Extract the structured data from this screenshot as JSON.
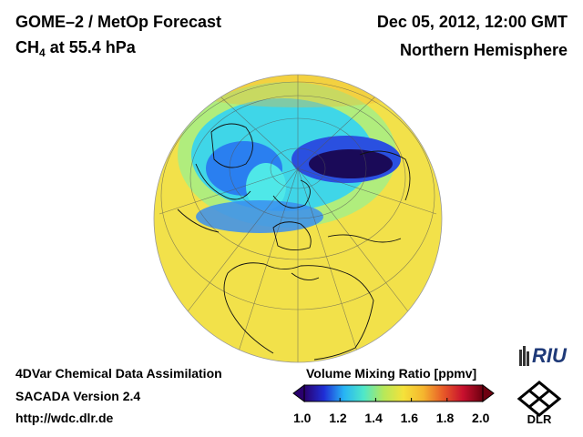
{
  "header": {
    "product": "GOME–2 / MetOp Forecast",
    "species": "CH",
    "species_subscript": "4",
    "level": "at 55.4 hPa",
    "datetime": "Dec 05, 2012, 12:00 GMT",
    "region": "Northern Hemisphere"
  },
  "footer": {
    "line1": "4DVar Chemical Data Assimilation",
    "line2": "SACADA Version 2.4",
    "line3": "http://wdc.dlr.de"
  },
  "colorbar": {
    "title": "Volume Mixing Ratio [ppmv]",
    "ticks": [
      "1.0",
      "1.2",
      "1.4",
      "1.6",
      "1.8",
      "2.0"
    ],
    "min": 1.0,
    "max": 2.0,
    "colors": [
      "#2a006e",
      "#1f2fd6",
      "#27b4f5",
      "#4fe8c8",
      "#b6e85a",
      "#f5e23a",
      "#f5b52e",
      "#e85a28",
      "#c8102e",
      "#6e0010"
    ]
  },
  "logos": {
    "riu": "RIU",
    "dlr": "DLR"
  },
  "map": {
    "projection": "orthographic",
    "background_color": "#f2e14a"
  }
}
